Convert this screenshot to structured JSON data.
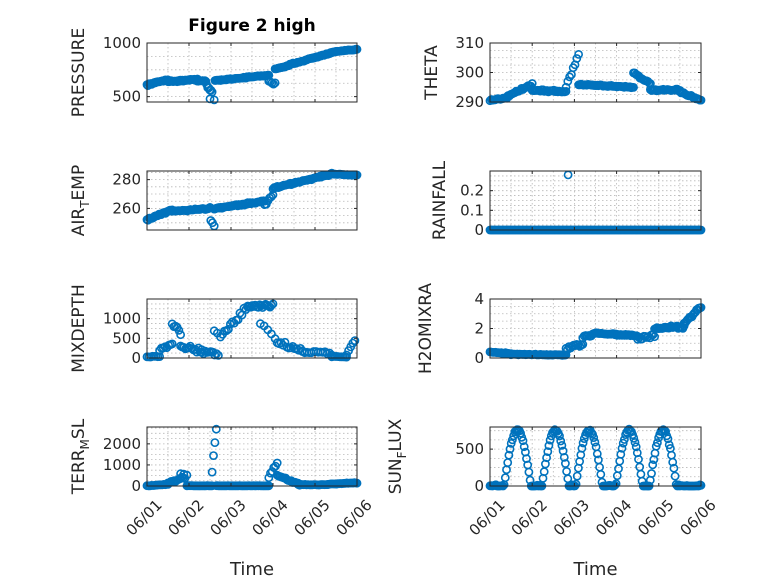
{
  "colors": {
    "marker": "#0072BD",
    "axis": "#262626",
    "grid": "#b8b8b8"
  },
  "chart_data": [
    {
      "id": "pressure",
      "type": "scatter",
      "title": "Figure 2 high",
      "ylabel": "PRESSURE",
      "xlabel": "",
      "xlim": [
        0,
        5
      ],
      "ylim": [
        450,
        1000
      ],
      "yticks": [
        500,
        1000
      ],
      "ytick_labels": [
        "500",
        "1000"
      ],
      "xticks": [
        0,
        1,
        2,
        3,
        4,
        5
      ],
      "xtick_labels": [
        "06/01",
        "06/02",
        "06/03",
        "06/04",
        "06/05",
        "06/06"
      ],
      "show_xticklabels": false,
      "grid": true,
      "marker": "circle-open",
      "segments": [
        {
          "x0": 0.0,
          "x1": 0.5,
          "y0": 610,
          "y1": 660,
          "n": 24,
          "noise": 10
        },
        {
          "x0": 0.5,
          "x1": 1.2,
          "y0": 640,
          "y1": 660,
          "n": 30,
          "noise": 10
        },
        {
          "x0": 1.2,
          "x1": 1.4,
          "y0": 650,
          "y1": 645,
          "n": 10,
          "noise": 8
        },
        {
          "x0": 1.42,
          "x1": 1.55,
          "y0": 600,
          "y1": 540,
          "n": 6,
          "noise": 20
        },
        {
          "x0": 1.5,
          "x1": 1.6,
          "y0": 480,
          "y1": 470,
          "n": 2,
          "noise": 5
        },
        {
          "x0": 1.62,
          "x1": 2.9,
          "y0": 650,
          "y1": 700,
          "n": 50,
          "noise": 8
        },
        {
          "x0": 2.9,
          "x1": 3.05,
          "y0": 640,
          "y1": 620,
          "n": 5,
          "noise": 15
        },
        {
          "x0": 3.05,
          "x1": 3.4,
          "y0": 760,
          "y1": 790,
          "n": 16,
          "noise": 8
        },
        {
          "x0": 3.4,
          "x1": 4.5,
          "y0": 800,
          "y1": 920,
          "n": 44,
          "noise": 8
        },
        {
          "x0": 4.5,
          "x1": 5.0,
          "y0": 920,
          "y1": 940,
          "n": 20,
          "noise": 5
        }
      ]
    },
    {
      "id": "theta",
      "type": "scatter",
      "title": "",
      "ylabel": "THETA",
      "xlabel": "",
      "xlim": [
        0,
        5
      ],
      "ylim": [
        290,
        310
      ],
      "yticks": [
        290,
        300,
        310
      ],
      "ytick_labels": [
        "290",
        "300",
        "310"
      ],
      "xticks": [
        0,
        1,
        2,
        3,
        4,
        5
      ],
      "xtick_labels": [
        "06/01",
        "06/02",
        "06/03",
        "06/04",
        "06/05",
        "06/06"
      ],
      "show_xticklabels": false,
      "grid": true,
      "marker": "circle-open",
      "segments": [
        {
          "x0": 0.0,
          "x1": 0.4,
          "y0": 290.5,
          "y1": 291.5,
          "n": 14,
          "noise": 0.4
        },
        {
          "x0": 0.4,
          "x1": 1.0,
          "y0": 292,
          "y1": 296,
          "n": 20,
          "noise": 0.6
        },
        {
          "x0": 1.0,
          "x1": 1.8,
          "y0": 294,
          "y1": 293.5,
          "n": 26,
          "noise": 0.5
        },
        {
          "x0": 1.8,
          "x1": 2.1,
          "y0": 295,
          "y1": 306,
          "n": 8,
          "noise": 1.2
        },
        {
          "x0": 2.1,
          "x1": 3.4,
          "y0": 296,
          "y1": 295,
          "n": 48,
          "noise": 0.4
        },
        {
          "x0": 3.4,
          "x1": 3.8,
          "y0": 300,
          "y1": 296,
          "n": 14,
          "noise": 0.6
        },
        {
          "x0": 3.8,
          "x1": 4.5,
          "y0": 294,
          "y1": 294,
          "n": 24,
          "noise": 0.4
        },
        {
          "x0": 4.5,
          "x1": 5.0,
          "y0": 293.5,
          "y1": 290.5,
          "n": 18,
          "noise": 0.4
        }
      ]
    },
    {
      "id": "air_temp",
      "type": "scatter",
      "title": "",
      "ylabel": "AIR",
      "ylabel_sub": "T",
      "ylabel_rest": "EMP",
      "xlabel": "",
      "xlim": [
        0,
        5
      ],
      "ylim": [
        245,
        286
      ],
      "yticks": [
        260,
        280
      ],
      "ytick_labels": [
        "260",
        "280"
      ],
      "xticks": [
        0,
        1,
        2,
        3,
        4,
        5
      ],
      "xtick_labels": [
        "06/01",
        "06/02",
        "06/03",
        "06/04",
        "06/05",
        "06/06"
      ],
      "show_xticklabels": false,
      "grid": true,
      "marker": "circle-open",
      "segments": [
        {
          "x0": 0.0,
          "x1": 0.6,
          "y0": 252,
          "y1": 259,
          "n": 24,
          "noise": 1.0
        },
        {
          "x0": 0.6,
          "x1": 1.5,
          "y0": 258,
          "y1": 260,
          "n": 34,
          "noise": 0.8
        },
        {
          "x0": 1.52,
          "x1": 1.6,
          "y0": 252,
          "y1": 248,
          "n": 3,
          "noise": 1.5
        },
        {
          "x0": 1.6,
          "x1": 2.8,
          "y0": 260,
          "y1": 265,
          "n": 46,
          "noise": 1.0
        },
        {
          "x0": 2.8,
          "x1": 3.0,
          "y0": 262,
          "y1": 270,
          "n": 6,
          "noise": 1.5
        },
        {
          "x0": 3.0,
          "x1": 4.4,
          "y0": 274,
          "y1": 284,
          "n": 56,
          "noise": 0.8
        },
        {
          "x0": 4.4,
          "x1": 5.0,
          "y0": 284,
          "y1": 283,
          "n": 22,
          "noise": 0.4
        }
      ]
    },
    {
      "id": "rainfall",
      "type": "scatter",
      "title": "",
      "ylabel": "RAINFALL",
      "xlabel": "",
      "xlim": [
        0,
        5
      ],
      "ylim": [
        0,
        0.3
      ],
      "yticks": [
        0,
        0.1,
        0.2
      ],
      "ytick_labels": [
        "0",
        "0.1",
        "0.2"
      ],
      "xticks": [
        0,
        1,
        2,
        3,
        4,
        5
      ],
      "xtick_labels": [
        "06/01",
        "06/02",
        "06/03",
        "06/04",
        "06/05",
        "06/06"
      ],
      "show_xticklabels": false,
      "grid": true,
      "marker": "circle-open",
      "segments": [
        {
          "x0": 0.0,
          "x1": 5.0,
          "y0": 0,
          "y1": 0,
          "n": 180,
          "noise": 0
        }
      ],
      "extra_points": [
        [
          1.85,
          0.28
        ]
      ]
    },
    {
      "id": "mixdepth",
      "type": "scatter",
      "title": "",
      "ylabel": "MIXDEPTH",
      "xlabel": "",
      "xlim": [
        0,
        5
      ],
      "ylim": [
        0,
        1500
      ],
      "yticks": [
        0,
        500,
        1000
      ],
      "ytick_labels": [
        "0",
        "500",
        "1000"
      ],
      "xticks": [
        0,
        1,
        2,
        3,
        4,
        5
      ],
      "xtick_labels": [
        "06/01",
        "06/02",
        "06/03",
        "06/04",
        "06/05",
        "06/06"
      ],
      "show_xticklabels": false,
      "grid": true,
      "marker": "circle-open",
      "segments": [
        {
          "x0": 0.0,
          "x1": 0.3,
          "y0": 30,
          "y1": 40,
          "n": 8,
          "noise": 20
        },
        {
          "x0": 0.3,
          "x1": 0.6,
          "y0": 200,
          "y1": 350,
          "n": 8,
          "noise": 60
        },
        {
          "x0": 0.6,
          "x1": 0.8,
          "y0": 900,
          "y1": 600,
          "n": 6,
          "noise": 80
        },
        {
          "x0": 0.8,
          "x1": 1.3,
          "y0": 300,
          "y1": 200,
          "n": 14,
          "noise": 120
        },
        {
          "x0": 1.3,
          "x1": 1.7,
          "y0": 150,
          "y1": 100,
          "n": 10,
          "noise": 100
        },
        {
          "x0": 1.6,
          "x1": 1.75,
          "y0": 700,
          "y1": 550,
          "n": 3,
          "noise": 50
        },
        {
          "x0": 1.8,
          "x1": 2.4,
          "y0": 600,
          "y1": 1300,
          "n": 14,
          "noise": 120
        },
        {
          "x0": 2.4,
          "x1": 3.0,
          "y0": 1300,
          "y1": 1350,
          "n": 18,
          "noise": 70
        },
        {
          "x0": 2.7,
          "x1": 3.05,
          "y0": 900,
          "y1": 500,
          "n": 5,
          "noise": 100
        },
        {
          "x0": 3.1,
          "x1": 3.7,
          "y0": 400,
          "y1": 200,
          "n": 14,
          "noise": 120
        },
        {
          "x0": 3.7,
          "x1": 4.4,
          "y0": 150,
          "y1": 100,
          "n": 14,
          "noise": 80
        },
        {
          "x0": 4.4,
          "x1": 4.75,
          "y0": 40,
          "y1": 30,
          "n": 10,
          "noise": 20
        },
        {
          "x0": 4.75,
          "x1": 4.95,
          "y0": 100,
          "y1": 450,
          "n": 5,
          "noise": 40
        }
      ]
    },
    {
      "id": "h2omixra",
      "type": "scatter",
      "title": "",
      "ylabel": "H2OMIXRA",
      "xlabel": "",
      "xlim": [
        0,
        5
      ],
      "ylim": [
        0,
        4
      ],
      "yticks": [
        0,
        2,
        4
      ],
      "ytick_labels": [
        "0",
        "2",
        "4"
      ],
      "xticks": [
        0,
        1,
        2,
        3,
        4,
        5
      ],
      "xtick_labels": [
        "06/01",
        "06/02",
        "06/03",
        "06/04",
        "06/05",
        "06/06"
      ],
      "show_xticklabels": false,
      "grid": true,
      "marker": "circle-open",
      "segments": [
        {
          "x0": 0.0,
          "x1": 0.5,
          "y0": 0.4,
          "y1": 0.3,
          "n": 16,
          "noise": 0.05
        },
        {
          "x0": 0.5,
          "x1": 1.8,
          "y0": 0.25,
          "y1": 0.2,
          "n": 46,
          "noise": 0.05
        },
        {
          "x0": 1.8,
          "x1": 2.2,
          "y0": 0.6,
          "y1": 0.9,
          "n": 12,
          "noise": 0.2
        },
        {
          "x0": 2.2,
          "x1": 2.5,
          "y0": 1.4,
          "y1": 1.7,
          "n": 10,
          "noise": 0.15
        },
        {
          "x0": 2.5,
          "x1": 3.5,
          "y0": 1.7,
          "y1": 1.5,
          "n": 36,
          "noise": 0.1
        },
        {
          "x0": 3.5,
          "x1": 3.9,
          "y0": 1.3,
          "y1": 1.5,
          "n": 12,
          "noise": 0.15
        },
        {
          "x0": 3.9,
          "x1": 4.6,
          "y0": 2.0,
          "y1": 2.1,
          "n": 26,
          "noise": 0.15
        },
        {
          "x0": 4.6,
          "x1": 5.0,
          "y0": 2.3,
          "y1": 3.5,
          "n": 16,
          "noise": 0.15
        }
      ]
    },
    {
      "id": "terr_msl",
      "type": "scatter",
      "title": "",
      "ylabel": "TERR",
      "ylabel_sub": "M",
      "ylabel_rest": "SL",
      "xlabel": "Time",
      "xlim": [
        0,
        5
      ],
      "ylim": [
        0,
        2800
      ],
      "yticks": [
        0,
        1000,
        2000
      ],
      "ytick_labels": [
        "0",
        "1000",
        "2000"
      ],
      "xticks": [
        0,
        1,
        2,
        3,
        4,
        5
      ],
      "xtick_labels": [
        "06/01",
        "06/02",
        "06/03",
        "06/04",
        "06/05",
        "06/06"
      ],
      "show_xticklabels": true,
      "grid": true,
      "marker": "circle-open",
      "segments": [
        {
          "x0": 0.0,
          "x1": 0.5,
          "y0": 10,
          "y1": 80,
          "n": 16,
          "noise": 20
        },
        {
          "x0": 0.5,
          "x1": 0.9,
          "y0": 150,
          "y1": 400,
          "n": 12,
          "noise": 80
        },
        {
          "x0": 0.8,
          "x1": 0.95,
          "y0": 600,
          "y1": 500,
          "n": 3,
          "noise": 50
        },
        {
          "x0": 0.95,
          "x1": 1.55,
          "y0": 10,
          "y1": 10,
          "n": 24,
          "noise": 5
        },
        {
          "x0": 1.55,
          "x1": 1.65,
          "y0": 700,
          "y1": 2700,
          "n": 4,
          "noise": 100
        },
        {
          "x0": 1.65,
          "x1": 2.9,
          "y0": 10,
          "y1": 10,
          "n": 46,
          "noise": 5
        },
        {
          "x0": 2.9,
          "x1": 3.1,
          "y0": 400,
          "y1": 1100,
          "n": 6,
          "noise": 150
        },
        {
          "x0": 3.1,
          "x1": 3.6,
          "y0": 500,
          "y1": 100,
          "n": 16,
          "noise": 60
        },
        {
          "x0": 3.6,
          "x1": 4.3,
          "y0": 60,
          "y1": 60,
          "n": 22,
          "noise": 25
        },
        {
          "x0": 4.3,
          "x1": 5.0,
          "y0": 80,
          "y1": 150,
          "n": 24,
          "noise": 25
        }
      ]
    },
    {
      "id": "sun_flux",
      "type": "scatter",
      "title": "",
      "ylabel": "SUN",
      "ylabel_sub": "F",
      "ylabel_rest": "LUX",
      "xlabel": "Time",
      "xlim": [
        0,
        5
      ],
      "ylim": [
        0,
        800
      ],
      "yticks": [
        0,
        500
      ],
      "ytick_labels": [
        "0",
        "500"
      ],
      "xticks": [
        0,
        1,
        2,
        3,
        4,
        5
      ],
      "xtick_labels": [
        "06/01",
        "06/02",
        "06/03",
        "06/04",
        "06/05",
        "06/06"
      ],
      "show_xticklabels": true,
      "grid": true,
      "marker": "circle-open",
      "diurnal": {
        "x0": 0.0,
        "x1": 5.0,
        "n": 180,
        "amplitude": 760,
        "peaks": [
          0.65,
          1.55,
          2.35,
          3.3,
          4.1
        ],
        "width": 0.32
      }
    }
  ]
}
